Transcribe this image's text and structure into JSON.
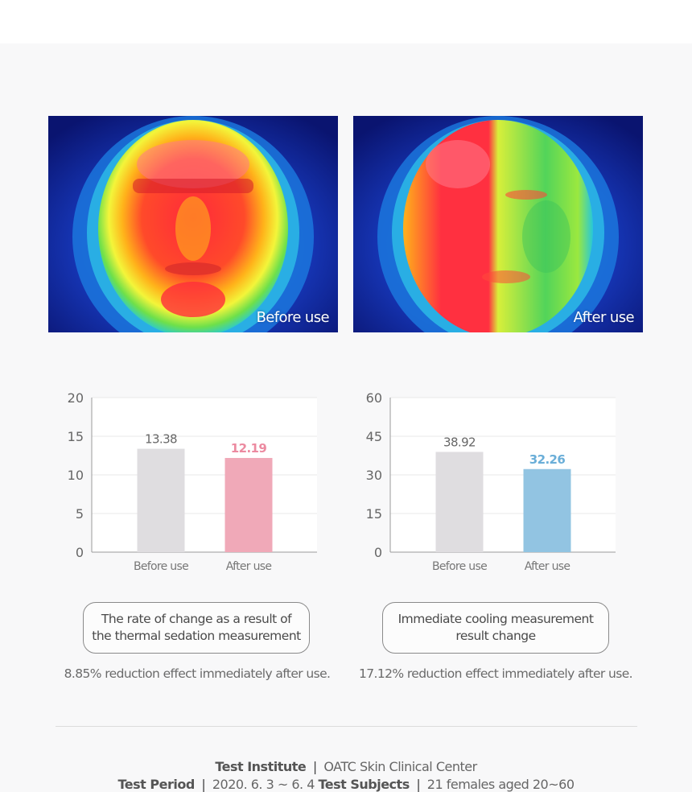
{
  "photos": [
    {
      "label": "Before use",
      "scene": "thermal-face-before"
    },
    {
      "label": "After use",
      "scene": "thermal-face-after"
    }
  ],
  "chart_data": [
    {
      "type": "bar",
      "categories": [
        "Before use",
        "After use"
      ],
      "values": [
        13.38,
        12.19
      ],
      "value_labels": [
        "13.38",
        "12.19"
      ],
      "ylim": [
        0,
        20
      ],
      "yticks": [
        0,
        5,
        10,
        15,
        20
      ],
      "colors": [
        "#dfdde0",
        "#f0a9b8"
      ],
      "label_colors": [
        "#666666",
        "#ec8aa0"
      ],
      "grid": true
    },
    {
      "type": "bar",
      "categories": [
        "Before use",
        "After use"
      ],
      "values": [
        38.92,
        32.26
      ],
      "value_labels": [
        "38.92",
        "32.26"
      ],
      "ylim": [
        0,
        60
      ],
      "yticks": [
        0,
        15,
        30,
        45,
        60
      ],
      "colors": [
        "#dfdde0",
        "#92c4e2"
      ],
      "label_colors": [
        "#666666",
        "#6aaed8"
      ],
      "grid": true
    }
  ],
  "captions": [
    {
      "title": "The rate of change as a result of\nthe thermal sedation measurement",
      "note": "8.85% reduction effect immediately after use."
    },
    {
      "title": "Immediate cooling measurement\nresult change",
      "note": "17.12% reduction effect immediately after use."
    }
  ],
  "footer": {
    "institute_label": "Test Institute",
    "institute_value": "OATC Skin Clinical Center",
    "period_label": "Test Period",
    "period_value": "2020. 6. 3 ~ 6. 4",
    "subjects_label": "Test Subjects",
    "subjects_value": "21 females aged 20~60",
    "separator": "|"
  },
  "colors": {
    "background": "#f8f8f9",
    "topbar": "#ffffff"
  }
}
